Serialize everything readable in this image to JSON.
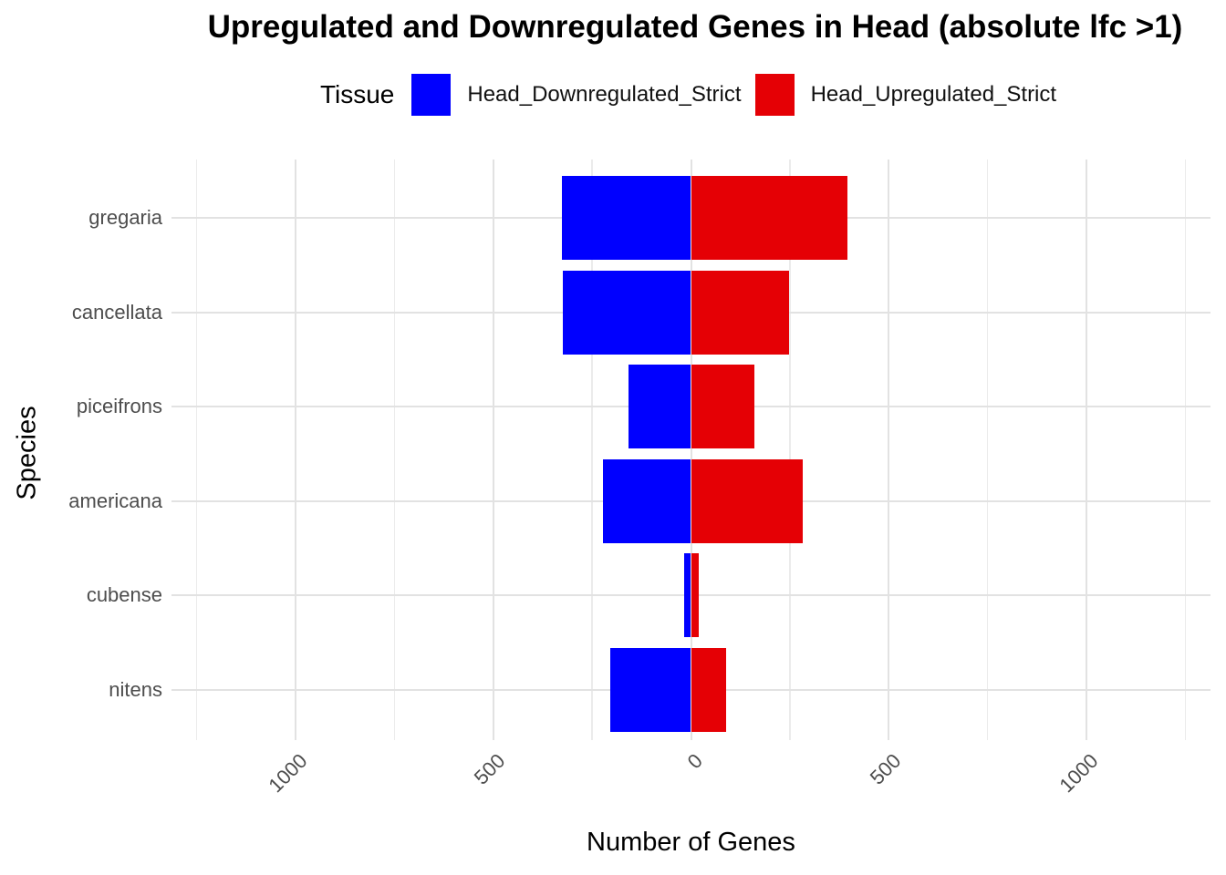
{
  "title": "Upregulated and Downregulated Genes in Head (absolute lfc >1)",
  "legend": {
    "title": "Tissue",
    "items": [
      {
        "label": "Head_Downregulated_Strict",
        "color": "#0000FF"
      },
      {
        "label": "Head_Upregulated_Strict",
        "color": "#E50005"
      }
    ]
  },
  "chart_data": {
    "type": "bar",
    "orientation": "horizontal-diverging",
    "title": "Upregulated and Downregulated Genes in Head (absolute lfc >1)",
    "xlabel": "Number of Genes",
    "ylabel": "Species",
    "categories": [
      "gregaria",
      "cancellata",
      "piceifrons",
      "americana",
      "cubense",
      "nitens"
    ],
    "series": [
      {
        "name": "Head_Downregulated_Strict",
        "direction": "negative",
        "color": "#0000FF",
        "values": [
          326,
          324,
          157,
          223,
          17,
          204
        ]
      },
      {
        "name": "Head_Upregulated_Strict",
        "direction": "positive",
        "color": "#E50005",
        "values": [
          396,
          247,
          160,
          282,
          20,
          88
        ]
      }
    ],
    "x_major_ticks": [
      -1000,
      -500,
      0,
      500,
      1000
    ],
    "x_tick_labels": [
      "1000",
      "500",
      "0",
      "500",
      "1000"
    ],
    "x_minor_ticks": [
      -1250,
      -750,
      -250,
      250,
      750,
      1250
    ],
    "xlim": [
      -1314,
      1314
    ],
    "grid": true,
    "legend_position": "top"
  },
  "colors": {
    "bar_down": "#0000FF",
    "bar_up": "#E50005",
    "grid_major": "#E2E2E2",
    "grid_minor": "#EBEBEB",
    "axis_text": "#4D4D4D",
    "background": "#FFFFFF"
  }
}
